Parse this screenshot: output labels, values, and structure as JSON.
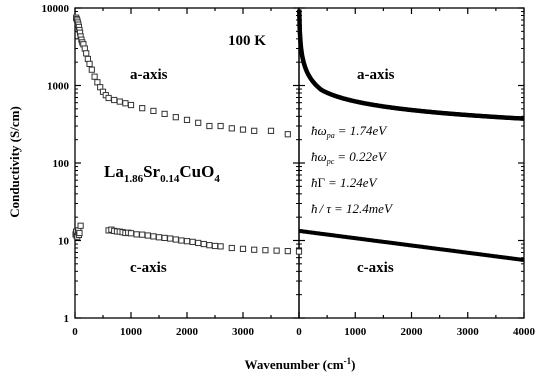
{
  "chart_data": [
    {
      "type": "scatter",
      "panel": "left",
      "xlabel": "Wavenumber (cm",
      "xlabel_sup": "-1",
      "xlabel_close": ")",
      "ylabel": "Conductivity (S/cm)",
      "xlim": [
        0,
        4000
      ],
      "ylim": [
        1,
        10000
      ],
      "yscale": "log",
      "x_ticks": [
        0,
        1000,
        2000,
        3000
      ],
      "x_tick_labels": [
        "0",
        "1000",
        "2000",
        "3000"
      ],
      "y_ticks": [
        1,
        10,
        100,
        1000,
        10000
      ],
      "y_tick_labels": [
        "1",
        "10",
        "100",
        "1000",
        "10000"
      ],
      "annotations": {
        "temperature": "100 K",
        "a_axis": "a-axis",
        "c_axis": "c-axis",
        "compound": {
          "la": "La",
          "la_sub": "1.86",
          "sr": "Sr",
          "sr_sub": "0.14",
          "cu": "CuO",
          "o_sub": "4"
        }
      },
      "series": [
        {
          "marker": "open-square",
          "x": [
            20,
            30,
            40,
            50,
            60,
            70,
            80,
            90,
            100,
            115,
            130,
            150,
            175,
            200,
            230,
            260,
            300,
            350,
            400,
            450,
            500,
            550,
            600,
            700,
            800,
            900,
            1000,
            1200,
            1400,
            1600,
            1800,
            2000,
            2200,
            2400,
            2600,
            2800,
            3000,
            3200,
            3500,
            3800
          ],
          "values": [
            7500,
            7200,
            6900,
            6500,
            6100,
            5700,
            5200,
            4800,
            4300,
            3900,
            3600,
            3400,
            3000,
            2600,
            2200,
            1900,
            1600,
            1300,
            1100,
            950,
            830,
            750,
            690,
            650,
            620,
            590,
            560,
            510,
            470,
            430,
            390,
            360,
            330,
            300,
            300,
            280,
            270,
            260,
            260,
            235
          ]
        },
        {
          "marker": "open-square",
          "x": [
            10,
            20,
            30,
            40,
            50,
            60,
            70,
            80,
            100,
            600,
            650,
            700,
            750,
            800,
            850,
            900,
            950,
            1000,
            1100,
            1200,
            1300,
            1400,
            1500,
            1600,
            1700,
            1800,
            1900,
            2000,
            2100,
            2200,
            2300,
            2400,
            2500,
            2600,
            2800,
            3000,
            3200,
            3400,
            3600,
            3800,
            4000
          ],
          "values": [
            12,
            13,
            11.5,
            11.2,
            12.8,
            13.5,
            11.8,
            12.5,
            15.5,
            13.5,
            13.8,
            13.3,
            13.1,
            13.0,
            12.8,
            12.5,
            12.6,
            12.4,
            12.0,
            11.9,
            11.6,
            11.3,
            11.0,
            10.8,
            10.6,
            10.3,
            10.0,
            9.8,
            9.6,
            9.3,
            9.0,
            8.7,
            8.5,
            8.4,
            8.0,
            7.8,
            7.6,
            7.5,
            7.4,
            7.3,
            7.2
          ]
        }
      ]
    },
    {
      "type": "line",
      "panel": "right",
      "xlim": [
        0,
        4000
      ],
      "ylim": [
        1,
        10000
      ],
      "yscale": "log",
      "x_ticks": [
        0,
        1000,
        2000,
        3000,
        4000
      ],
      "x_tick_labels": [
        "0",
        "1000",
        "2000",
        "3000",
        "4000"
      ],
      "annotations": {
        "a_axis": "a-axis",
        "c_axis": "c-axis",
        "params": [
          {
            "sym": "ω",
            "sub": "pa",
            "rhs": "= 1.74eV"
          },
          {
            "sym": "ω",
            "sub": "pc",
            "rhs": "= 0.22eV"
          },
          {
            "sym": "Γ",
            "sub": "",
            "rhs": "= 1.24eV"
          },
          {
            "sym": "/ τ",
            "sub": "",
            "rhs": "= 12.4meV"
          }
        ]
      },
      "drude": {
        "hbar_omega_pa_eV": 1.74,
        "hbar_omega_pc_eV": 0.22,
        "hbar_gamma_eV": 1.24,
        "hbar_over_tau_meV": 12.4
      }
    }
  ]
}
